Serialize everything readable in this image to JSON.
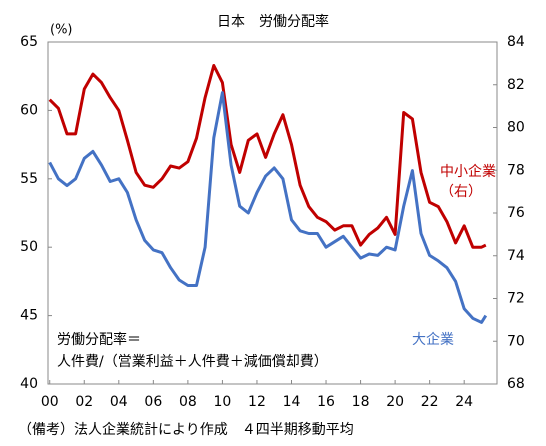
{
  "chart_data": {
    "type": "line",
    "title": "日本　労働分配率",
    "y_label": "(%)",
    "annotations": [
      "労働分配率＝",
      "人件費/（営業利益＋人件費＋減価償却費）",
      "（右）"
    ],
    "footnote": "（備考）法人企業統計により作成　４四半期移動平均",
    "x": [
      2000,
      2000.5,
      2001,
      2001.5,
      2002,
      2002.5,
      2003,
      2003.5,
      2004,
      2004.5,
      2005,
      2005.5,
      2006,
      2006.5,
      2007,
      2007.5,
      2008,
      2008.5,
      2009,
      2009.5,
      2010,
      2010.5,
      2011,
      2011.5,
      2012,
      2012.5,
      2013,
      2013.5,
      2014,
      2014.5,
      2015,
      2015.5,
      2016,
      2016.5,
      2017,
      2017.5,
      2018,
      2018.5,
      2019,
      2019.5,
      2020,
      2020.5,
      2021,
      2021.5,
      2022,
      2022.5,
      2023,
      2023.5,
      2024,
      2024.5,
      2025,
      2025.25
    ],
    "xlim": [
      1999.9,
      2025.9
    ],
    "xticks": [
      {
        "value": 2000,
        "label": "00"
      },
      {
        "value": 2002,
        "label": "02"
      },
      {
        "value": 2004,
        "label": "04"
      },
      {
        "value": 2006,
        "label": "06"
      },
      {
        "value": 2008,
        "label": "08"
      },
      {
        "value": 2010,
        "label": "10"
      },
      {
        "value": 2012,
        "label": "12"
      },
      {
        "value": 2014,
        "label": "14"
      },
      {
        "value": 2016,
        "label": "16"
      },
      {
        "value": 2018,
        "label": "18"
      },
      {
        "value": 2020,
        "label": "20"
      },
      {
        "value": 2022,
        "label": "22"
      },
      {
        "value": 2024,
        "label": "24"
      }
    ],
    "ylim": [
      40,
      65
    ],
    "yticks": [
      40,
      45,
      50,
      55,
      60,
      65
    ],
    "y2lim": [
      68,
      84
    ],
    "y2ticks": [
      68,
      70,
      72,
      74,
      76,
      78,
      80,
      82,
      84
    ],
    "series": [
      {
        "name": "中小企業",
        "color": "#c00000",
        "axis": "y2",
        "values": [
          81.3,
          80.9,
          79.7,
          79.7,
          81.8,
          82.5,
          82.1,
          81.4,
          80.8,
          79.4,
          77.9,
          77.3,
          77.2,
          77.6,
          78.2,
          78.1,
          78.4,
          79.5,
          81.4,
          82.9,
          82.1,
          79.2,
          77.9,
          79.4,
          79.7,
          78.6,
          79.7,
          80.6,
          79.2,
          77.3,
          76.3,
          75.8,
          75.6,
          75.2,
          75.4,
          75.4,
          74.5,
          75.0,
          75.3,
          75.8,
          75.0,
          80.7,
          80.4,
          77.9,
          76.5,
          76.3,
          75.6,
          74.6,
          75.4,
          74.4,
          74.4,
          74.5
        ]
      },
      {
        "name": "大企業",
        "color": "#4472c4",
        "values": [
          56.2,
          55.0,
          54.5,
          55.0,
          56.5,
          57.0,
          56.0,
          54.8,
          55.0,
          54.0,
          52.0,
          50.5,
          49.8,
          49.6,
          48.5,
          47.6,
          47.2,
          47.2,
          50.0,
          58.0,
          61.3,
          56.0,
          53.0,
          52.5,
          54.0,
          55.2,
          55.8,
          55.0,
          52.0,
          51.2,
          51.0,
          51.0,
          50.0,
          50.4,
          50.8,
          50.0,
          49.2,
          49.5,
          49.4,
          50.0,
          49.8,
          53.0,
          55.6,
          51.0,
          49.4,
          49.0,
          48.5,
          47.5,
          45.5,
          44.8,
          44.5,
          45.0
        ]
      }
    ]
  }
}
